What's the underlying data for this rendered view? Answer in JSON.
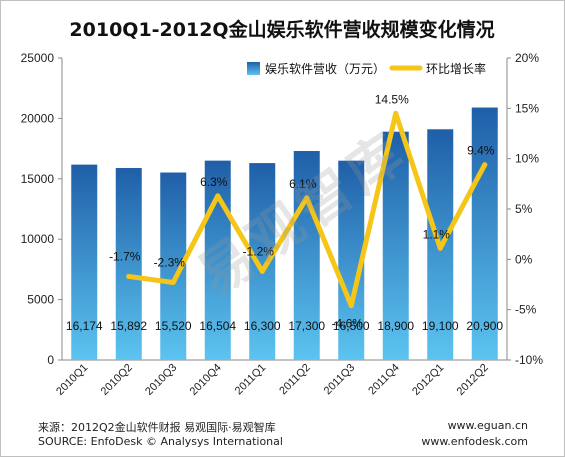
{
  "chart_data": {
    "type": "bar",
    "title": "2010Q1-2012Q金山娱乐软件营收规模变化情况",
    "categories": [
      "2010Q1",
      "2010Q2",
      "2010Q3",
      "2010Q4",
      "2011Q1",
      "2011Q2",
      "2011Q3",
      "2011Q4",
      "2012Q1",
      "2012Q2"
    ],
    "series": [
      {
        "name": "娱乐软件营收（万元）",
        "kind": "bar",
        "axis": "left",
        "values": [
          16174,
          15892,
          15520,
          16504,
          16300,
          17300,
          16500,
          18900,
          19100,
          20900
        ],
        "labels": [
          "16,174",
          "15,892",
          "15,520",
          "16,504",
          "16,300",
          "17,300",
          "16,500",
          "18,900",
          "19,100",
          "20,900"
        ]
      },
      {
        "name": "环比增长率",
        "kind": "line",
        "axis": "right",
        "values": [
          null,
          -1.7,
          -2.3,
          6.3,
          -1.2,
          6.1,
          -4.6,
          14.5,
          1.1,
          9.4
        ],
        "labels": [
          null,
          "-1.7%",
          "-2.3%",
          "6.3%",
          "-1.2%",
          "6.1%",
          "-4.6%",
          "14.5%",
          "1.1%",
          "9.4%"
        ]
      }
    ],
    "y_left": {
      "ylim": [
        0,
        25000
      ],
      "ticks": [
        "0",
        "5000",
        "10000",
        "15000",
        "20000",
        "25000"
      ]
    },
    "y_right": {
      "ylim": [
        -10,
        20
      ],
      "ticks": [
        "-10%",
        "-5%",
        "0%",
        "5%",
        "10%",
        "15%",
        "20%"
      ]
    },
    "legend_position": "top-right",
    "colors": {
      "bar_top": "#1f5fa8",
      "bar_bottom": "#5cc4f0",
      "line": "#f5c518"
    }
  },
  "source": {
    "line1_left": "来源：2012Q2金山软件财报 易观国际·易观智库",
    "line1_right": "www.eguan.cn",
    "line2_left": "SOURCE: EnfoDesk © Analysys International",
    "line2_right": "www.enfodesk.com"
  },
  "watermark": "易观智库"
}
